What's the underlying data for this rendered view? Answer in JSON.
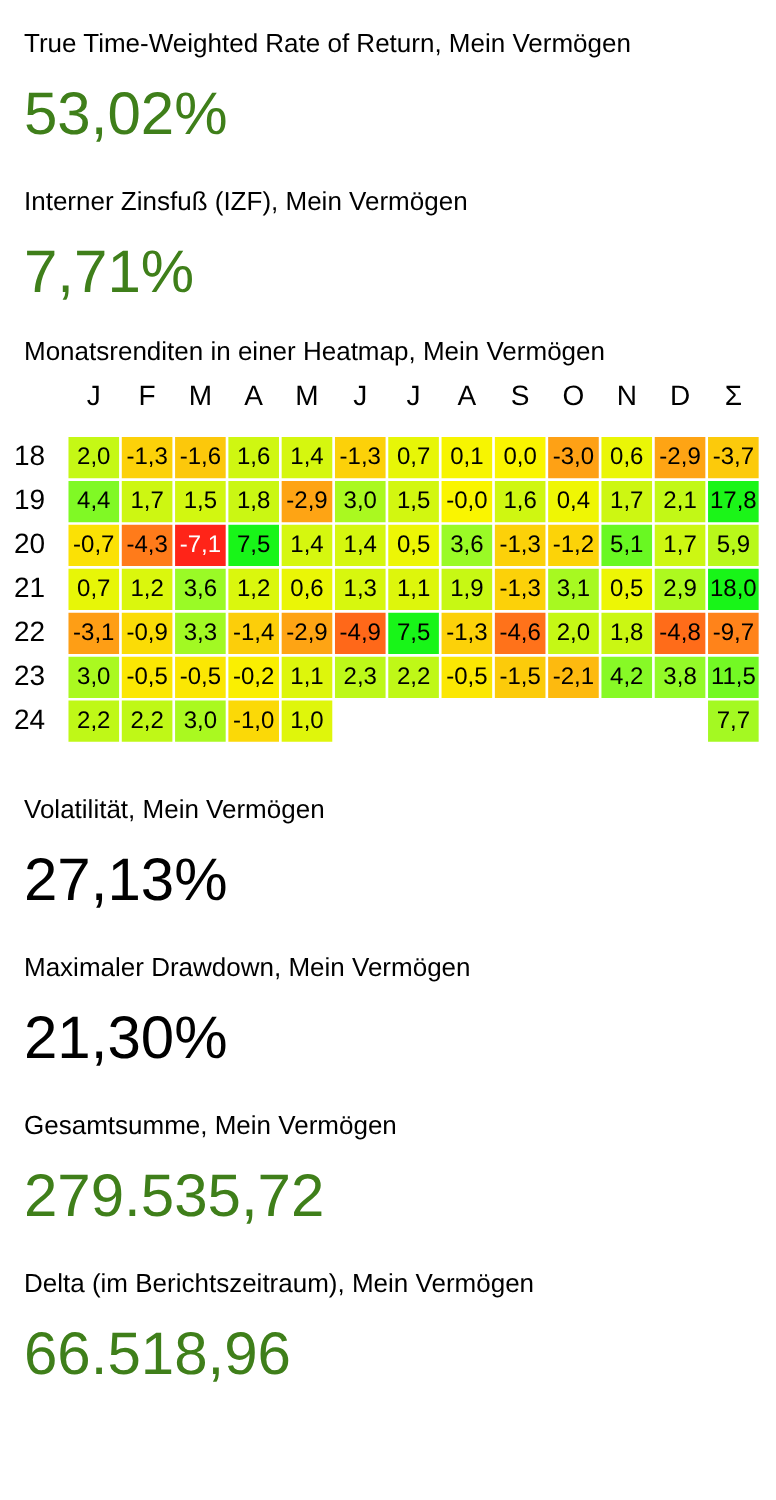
{
  "chart_data": [
    {
      "type": "other",
      "title": "True Time-Weighted Rate of Return, Mein Vermögen",
      "annotations": [
        "53,02%"
      ],
      "color": "#3f7f1a"
    },
    {
      "type": "other",
      "title": "Interner Zinsfuß (IZF), Mein Vermögen",
      "annotations": [
        "7,71%"
      ],
      "color": "#3f7f1a"
    },
    {
      "type": "heatmap",
      "title": "Monatsrenditen in einer Heatmap, Mein Vermögen",
      "categories": [
        "J",
        "F",
        "M",
        "A",
        "M",
        "J",
        "J",
        "A",
        "S",
        "O",
        "N",
        "D",
        "Σ"
      ],
      "y_categories": [
        "18",
        "19",
        "20",
        "21",
        "22",
        "23",
        "24"
      ],
      "cells": [
        [
          2.0,
          -1.3,
          -1.6,
          1.6,
          1.4,
          -1.3,
          0.7,
          0.1,
          0.0,
          -3.0,
          0.6,
          -2.9,
          -3.7
        ],
        [
          4.4,
          1.7,
          1.5,
          1.8,
          -2.9,
          3.0,
          1.5,
          -0.0,
          1.6,
          0.4,
          1.7,
          2.1,
          17.8
        ],
        [
          -0.7,
          -4.3,
          -7.1,
          7.5,
          1.4,
          1.4,
          0.5,
          3.6,
          -1.3,
          -1.2,
          5.1,
          1.7,
          5.9
        ],
        [
          0.7,
          1.2,
          3.6,
          1.2,
          0.6,
          1.3,
          1.1,
          1.9,
          -1.3,
          3.1,
          0.5,
          2.9,
          18.0
        ],
        [
          -3.1,
          -0.9,
          3.3,
          -1.4,
          -2.9,
          -4.9,
          7.5,
          -1.3,
          -4.6,
          2.0,
          1.8,
          -4.8,
          -9.7
        ],
        [
          3.0,
          -0.5,
          -0.5,
          -0.2,
          1.1,
          2.3,
          2.2,
          -0.5,
          -1.5,
          -2.1,
          4.2,
          3.8,
          11.5
        ],
        [
          2.2,
          2.2,
          3.0,
          -1.0,
          1.0,
          null,
          null,
          null,
          null,
          null,
          null,
          null,
          7.7
        ]
      ],
      "cell_labels": [
        [
          "2,0",
          "-1,3",
          "-1,6",
          "1,6",
          "1,4",
          "-1,3",
          "0,7",
          "0,1",
          "0,0",
          "-3,0",
          "0,6",
          "-2,9",
          "-3,7"
        ],
        [
          "4,4",
          "1,7",
          "1,5",
          "1,8",
          "-2,9",
          "3,0",
          "1,5",
          "-0,0",
          "1,6",
          "0,4",
          "1,7",
          "2,1",
          "17,8"
        ],
        [
          "-0,7",
          "-4,3",
          "-7,1",
          "7,5",
          "1,4",
          "1,4",
          "0,5",
          "3,6",
          "-1,3",
          "-1,2",
          "5,1",
          "1,7",
          "5,9"
        ],
        [
          "0,7",
          "1,2",
          "3,6",
          "1,2",
          "0,6",
          "1,3",
          "1,1",
          "1,9",
          "-1,3",
          "3,1",
          "0,5",
          "2,9",
          "18,0"
        ],
        [
          "-3,1",
          "-0,9",
          "3,3",
          "-1,4",
          "-2,9",
          "-4,9",
          "7,5",
          "-1,3",
          "-4,6",
          "2,0",
          "1,8",
          "-4,8",
          "-9,7"
        ],
        [
          "3,0",
          "-0,5",
          "-0,5",
          "-0,2",
          "1,1",
          "2,3",
          "2,2",
          "-0,5",
          "-1,5",
          "-2,1",
          "4,2",
          "3,8",
          "11,5"
        ],
        [
          "2,2",
          "2,2",
          "3,0",
          "-1,0",
          "1,0",
          null,
          null,
          null,
          null,
          null,
          null,
          null,
          "7,7"
        ]
      ]
    },
    {
      "type": "other",
      "title": "Volatilität, Mein Vermögen",
      "annotations": [
        "27,13%"
      ],
      "color": "#000000"
    },
    {
      "type": "other",
      "title": "Maximaler Drawdown, Mein Vermögen",
      "annotations": [
        "21,30%"
      ],
      "color": "#000000"
    },
    {
      "type": "other",
      "title": "Gesamtsumme, Mein Vermögen",
      "annotations": [
        "279.535,72"
      ],
      "color": "#3f7f1a"
    },
    {
      "type": "other",
      "title": "Delta (im Berichtszeitraum), Mein Vermögen",
      "annotations": [
        "66.518,96"
      ],
      "color": "#3f7f1a"
    }
  ]
}
